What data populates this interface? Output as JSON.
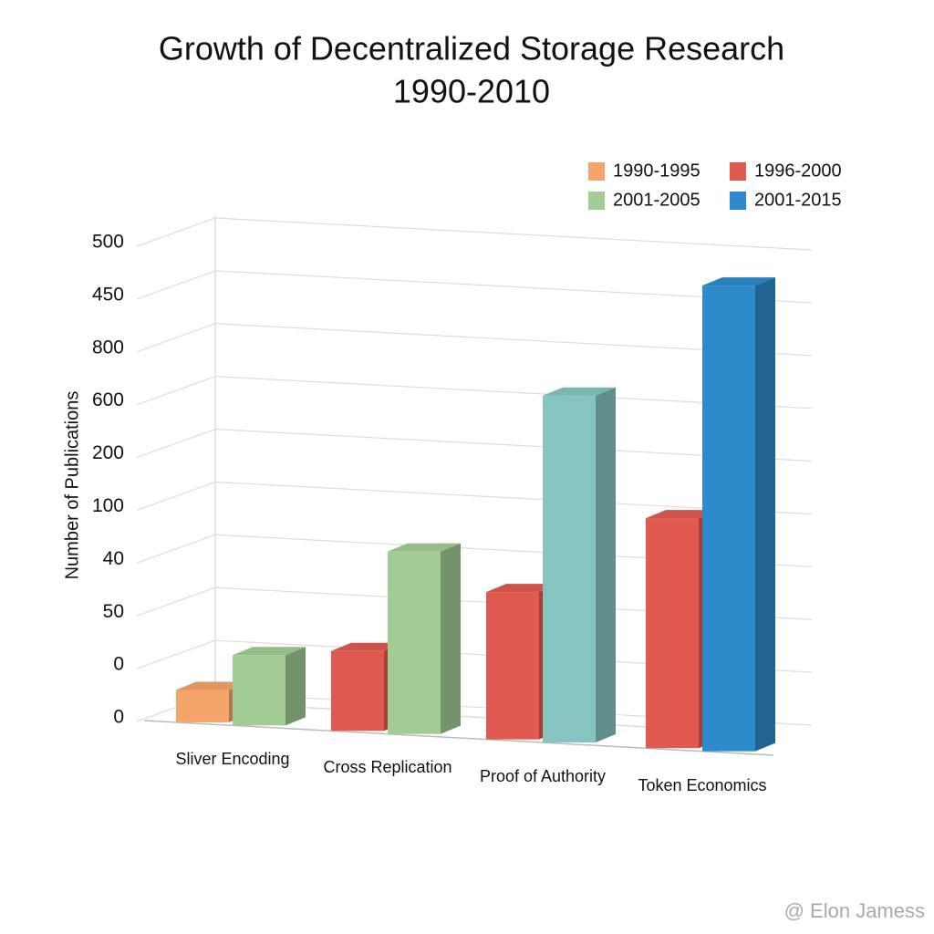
{
  "chart_data": {
    "type": "bar3d",
    "title": "Growth of Decentralized Storage Research",
    "subtitle": "1990-2010",
    "y_label": "Number of Publications",
    "categories": [
      "Sliver Encoding",
      "Cross Replication",
      "Proof of Authority",
      "Token Economics"
    ],
    "series": [
      {
        "name": "1990-1995",
        "color": "#f5a46b",
        "values": [
          34,
          null,
          null,
          null
        ]
      },
      {
        "name": "1996-2000",
        "color": "#e05a50",
        "values": [
          null,
          84,
          155,
          242
        ]
      },
      {
        "name": "2001-2005",
        "color": "#a3cc94",
        "point_colors": [
          null,
          null,
          "#86c5bf",
          null
        ],
        "values": [
          74,
          192,
          365,
          null
        ]
      },
      {
        "name": "2001-2015",
        "color": "#2e8bcb",
        "values": [
          null,
          null,
          null,
          490
        ]
      }
    ],
    "ylim": [
      0,
      500
    ],
    "yticks": [
      0,
      {
        "value": 55.6,
        "label": "0"
      },
      {
        "value": 111.1,
        "label": "50"
      },
      {
        "value": 166.7,
        "label": "40"
      },
      {
        "value": 222.2,
        "label": "100"
      },
      {
        "value": 277.8,
        "label": "200"
      },
      {
        "value": 333.3,
        "label": "600"
      },
      {
        "value": 388.9,
        "label": "800"
      },
      {
        "value": 444.4,
        "label": "450"
      },
      500
    ],
    "grid": true,
    "legend": "top-right",
    "watermark": "@ Elon Jamess"
  }
}
